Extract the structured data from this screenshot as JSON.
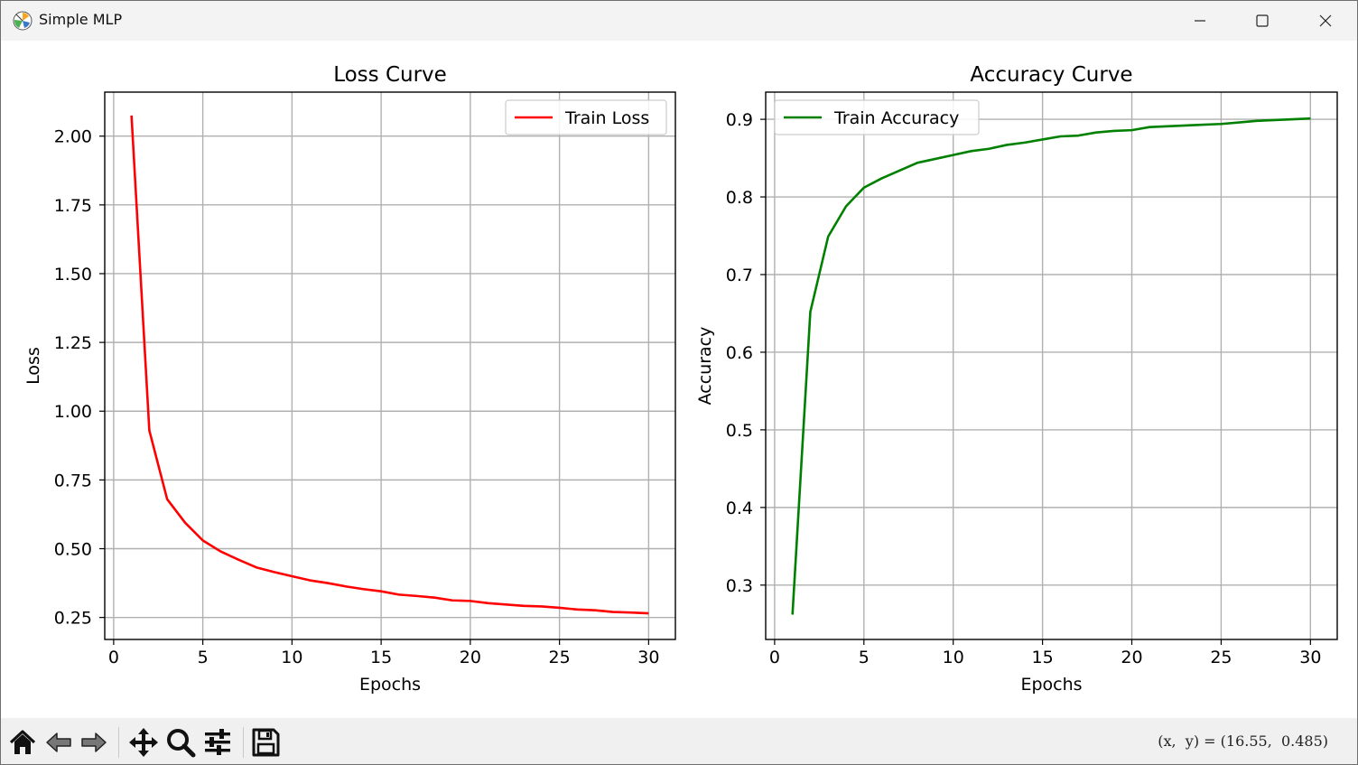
{
  "window": {
    "title": "Simple MLP",
    "controls": [
      "minimize",
      "maximize",
      "close"
    ]
  },
  "chart_data": [
    {
      "type": "line",
      "title": "Loss Curve",
      "xlabel": "Epochs",
      "ylabel": "Loss",
      "xlim": [
        -0.5,
        31.5
      ],
      "ylim": [
        0.17,
        2.16
      ],
      "xticks": [
        0,
        5,
        10,
        15,
        20,
        25,
        30
      ],
      "yticks": [
        0.25,
        0.5,
        0.75,
        1.0,
        1.25,
        1.5,
        1.75,
        2.0
      ],
      "ytick_labels": [
        "0.25",
        "0.50",
        "0.75",
        "1.00",
        "1.25",
        "1.50",
        "1.75",
        "2.00"
      ],
      "grid": true,
      "legend": "top-right",
      "series": [
        {
          "name": "Train Loss",
          "color": "#ff0000",
          "x": [
            1,
            2,
            3,
            4,
            5,
            6,
            7,
            8,
            9,
            10,
            11,
            12,
            13,
            14,
            15,
            16,
            17,
            18,
            19,
            20,
            21,
            22,
            23,
            24,
            25,
            26,
            27,
            28,
            29,
            30
          ],
          "y": [
            2.075,
            0.93,
            0.68,
            0.595,
            0.53,
            0.49,
            0.46,
            0.432,
            0.415,
            0.4,
            0.385,
            0.375,
            0.363,
            0.353,
            0.345,
            0.333,
            0.328,
            0.322,
            0.312,
            0.31,
            0.302,
            0.297,
            0.292,
            0.29,
            0.285,
            0.279,
            0.276,
            0.27,
            0.268,
            0.265
          ]
        }
      ]
    },
    {
      "type": "line",
      "title": "Accuracy Curve",
      "xlabel": "Epochs",
      "ylabel": "Accuracy",
      "xlim": [
        -0.5,
        31.5
      ],
      "ylim": [
        0.23,
        0.935
      ],
      "xticks": [
        0,
        5,
        10,
        15,
        20,
        25,
        30
      ],
      "yticks": [
        0.3,
        0.4,
        0.5,
        0.6,
        0.7,
        0.8,
        0.9
      ],
      "ytick_labels": [
        "0.3",
        "0.4",
        "0.5",
        "0.6",
        "0.7",
        "0.8",
        "0.9"
      ],
      "grid": true,
      "legend": "top-left",
      "series": [
        {
          "name": "Train Accuracy",
          "color": "#008000",
          "x": [
            1,
            2,
            3,
            4,
            5,
            6,
            7,
            8,
            9,
            10,
            11,
            12,
            13,
            14,
            15,
            16,
            17,
            18,
            19,
            20,
            21,
            22,
            23,
            24,
            25,
            26,
            27,
            28,
            29,
            30
          ],
          "y": [
            0.262,
            0.652,
            0.749,
            0.788,
            0.812,
            0.824,
            0.834,
            0.844,
            0.849,
            0.854,
            0.859,
            0.862,
            0.867,
            0.87,
            0.874,
            0.878,
            0.879,
            0.883,
            0.885,
            0.886,
            0.89,
            0.891,
            0.892,
            0.893,
            0.894,
            0.896,
            0.898,
            0.899,
            0.9,
            0.901
          ]
        }
      ]
    }
  ],
  "toolbar": {
    "buttons": [
      {
        "id": "home",
        "icon": "home-icon"
      },
      {
        "id": "back",
        "icon": "arrow-left-icon"
      },
      {
        "id": "forward",
        "icon": "arrow-right-icon"
      },
      {
        "id": "pan",
        "icon": "move-icon"
      },
      {
        "id": "zoom",
        "icon": "magnifier-icon"
      },
      {
        "id": "configure",
        "icon": "sliders-icon"
      },
      {
        "id": "save",
        "icon": "floppy-disk-icon"
      }
    ],
    "coords_text": "(x,  y) = (16.55,  0.485)"
  }
}
